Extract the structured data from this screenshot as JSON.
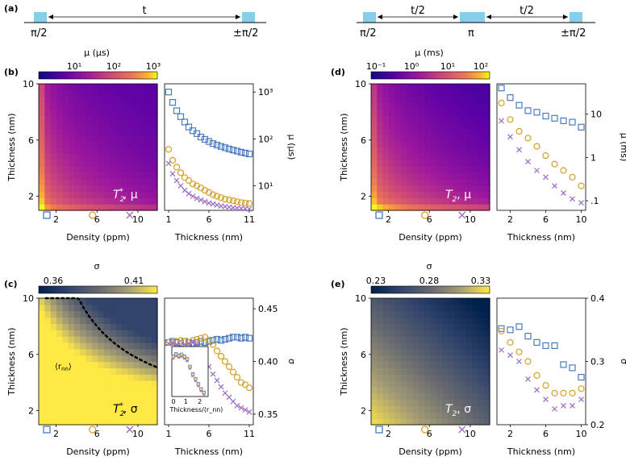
{
  "panel_labels": [
    "(a)",
    "(b)",
    "(c)",
    "(d)",
    "(e)"
  ],
  "pulse_a": {
    "start": "π/2",
    "end": "±π/2",
    "interval": "t"
  },
  "pulse_d": {
    "start": "π/2",
    "mid": "π",
    "end": "±π/2",
    "interval": "t/2"
  },
  "density_label": "Density (ppm)",
  "thickness_label": "Thickness (nm)",
  "colors": {
    "pulse": "#87ceeb",
    "blue": "#4a7bbf",
    "orange": "#d4a02a",
    "purple": "#9b6bc4",
    "dotted": "#000000"
  },
  "marker_legend": [
    "square",
    "circle",
    "x"
  ],
  "chart_data": [
    {
      "id": "b",
      "type": "heatmap",
      "xlabel": "Density (ppm)",
      "ylabel": "Thickness (nm)",
      "xticks": [
        "2",
        "6",
        "10"
      ],
      "yticks": [
        "2",
        "6",
        "10"
      ],
      "colorbar": {
        "label": "μ (μs)",
        "ticks": [
          "10¹",
          "10²",
          "10³"
        ],
        "scale": "log",
        "colormap": "plasma"
      },
      "annotation": "T2*, μ",
      "trend": "high at low density/low thickness, decreasing toward high density"
    },
    {
      "id": "b_side",
      "type": "scatter",
      "xlabel": "Thickness (nm)",
      "ylabel": "μ (μs)",
      "xticks": [
        "1",
        "6",
        "11"
      ],
      "yticks": [
        "10¹",
        "10²",
        "10³"
      ],
      "yscale": "log",
      "ylim": [
        3,
        1500
      ],
      "series": [
        {
          "marker": "square",
          "x": [
            1,
            1.5,
            2,
            2.5,
            3,
            3.5,
            4,
            4.5,
            5,
            5.5,
            6,
            6.5,
            7,
            7.5,
            8,
            8.5,
            9,
            9.5,
            10,
            10.5,
            11
          ],
          "values": [
            1000,
            600,
            400,
            300,
            230,
            180,
            150,
            130,
            110,
            98,
            88,
            80,
            74,
            69,
            65,
            61,
            58,
            55,
            52,
            50,
            48
          ]
        },
        {
          "marker": "circle",
          "x": [
            1,
            1.5,
            2,
            2.5,
            3,
            3.5,
            4,
            4.5,
            5,
            5.5,
            6,
            6.5,
            7,
            7.5,
            8,
            8.5,
            9,
            9.5,
            10,
            10.5,
            11
          ],
          "values": [
            60,
            35,
            25,
            19,
            15,
            13,
            11,
            10,
            9,
            8,
            7.2,
            6.5,
            6,
            5.6,
            5.2,
            5,
            4.8,
            4.6,
            4.4,
            4.3,
            4.2
          ]
        },
        {
          "marker": "x",
          "x": [
            1,
            1.5,
            2,
            2.5,
            3,
            3.5,
            4,
            4.5,
            5,
            5.5,
            6,
            6.5,
            7,
            7.5,
            8,
            8.5,
            9,
            9.5,
            10,
            10.5,
            11
          ],
          "values": [
            30,
            18,
            13,
            10,
            8,
            6.8,
            6,
            5.4,
            5,
            4.6,
            4.3,
            4.1,
            3.9,
            3.7,
            3.6,
            3.5,
            3.4,
            3.35,
            3.3,
            3.25,
            3.2
          ]
        }
      ]
    },
    {
      "id": "c",
      "type": "heatmap",
      "xlabel": "Density (ppm)",
      "ylabel": "Thickness (nm)",
      "xticks": [
        "2",
        "6",
        "10"
      ],
      "yticks": [
        "2",
        "6",
        "10"
      ],
      "colorbar": {
        "label": "σ",
        "ticks": [
          "0.36",
          "0.41"
        ],
        "colormap": "cividis"
      },
      "annotation": "T2*, σ",
      "curve_label": "⟨r_nn⟩"
    },
    {
      "id": "c_side",
      "type": "scatter",
      "xlabel": "Thickness (nm)",
      "ylabel": "σ",
      "xticks": [
        "1",
        "6",
        "11"
      ],
      "yticks": [
        "0.35",
        "0.40",
        "0.45"
      ],
      "ylim": [
        0.34,
        0.46
      ],
      "series": [
        {
          "marker": "square",
          "x": [
            1,
            1.5,
            2,
            2.5,
            3,
            3.5,
            4,
            4.5,
            5,
            5.5,
            6,
            6.5,
            7,
            7.5,
            8,
            8.5,
            9,
            9.5,
            10,
            10.5,
            11
          ],
          "values": [
            0.418,
            0.419,
            0.418,
            0.417,
            0.419,
            0.418,
            0.417,
            0.418,
            0.419,
            0.418,
            0.419,
            0.42,
            0.421,
            0.42,
            0.421,
            0.422,
            0.423,
            0.423,
            0.422,
            0.423,
            0.422
          ]
        },
        {
          "marker": "circle",
          "x": [
            1,
            1.5,
            2,
            2.5,
            3,
            3.5,
            4,
            4.5,
            5,
            5.5,
            6,
            6.5,
            7,
            7.5,
            8,
            8.5,
            9,
            9.5,
            10,
            10.5,
            11
          ],
          "values": [
            0.418,
            0.418,
            0.419,
            0.42,
            0.419,
            0.418,
            0.42,
            0.421,
            0.422,
            0.423,
            0.42,
            0.416,
            0.41,
            0.405,
            0.4,
            0.395,
            0.39,
            0.385,
            0.38,
            0.378,
            0.375
          ]
        },
        {
          "marker": "x",
          "x": [
            1,
            1.5,
            2,
            2.5,
            3,
            3.5,
            4,
            4.5,
            5,
            5.5,
            6,
            6.5,
            7,
            7.5,
            8,
            8.5,
            9,
            9.5,
            10,
            10.5,
            11
          ],
          "values": [
            0.417,
            0.418,
            0.416,
            0.415,
            0.416,
            0.417,
            0.418,
            0.416,
            0.41,
            0.402,
            0.395,
            0.388,
            0.382,
            0.376,
            0.37,
            0.366,
            0.362,
            0.358,
            0.356,
            0.354,
            0.352
          ]
        }
      ],
      "inset": {
        "xlabel": "Thickness/⟨r_nn⟩",
        "xticks": [
          "0",
          "1",
          "2"
        ]
      }
    },
    {
      "id": "d",
      "type": "heatmap",
      "xlabel": "Density (ppm)",
      "ylabel": "Thickness (nm)",
      "xticks": [
        "2",
        "6",
        "10"
      ],
      "yticks": [
        "2",
        "6",
        "10"
      ],
      "colorbar": {
        "label": "μ (ms)",
        "ticks": [
          "10⁻¹",
          "10⁰",
          "10¹",
          "10²"
        ],
        "scale": "log",
        "colormap": "plasma"
      },
      "annotation": "T2, μ"
    },
    {
      "id": "d_side",
      "type": "scatter",
      "xlabel": "Thickness (nm)",
      "ylabel": "μ (ms)",
      "xticks": [
        "2",
        "6",
        "10"
      ],
      "yticks": [
        ".1",
        "1",
        "10"
      ],
      "yscale": "log",
      "ylim": [
        0.06,
        50
      ],
      "series": [
        {
          "marker": "square",
          "x": [
            1,
            2,
            3,
            4,
            5,
            6,
            7,
            8,
            9,
            10
          ],
          "values": [
            40,
            24,
            16,
            12,
            11,
            9,
            8,
            7,
            6.5,
            5
          ]
        },
        {
          "marker": "circle",
          "x": [
            1,
            2,
            3,
            4,
            5,
            6,
            7,
            8,
            9,
            10
          ],
          "values": [
            18,
            7.5,
            4,
            2.8,
            1.8,
            1.1,
            0.7,
            0.5,
            0.35,
            0.22
          ]
        },
        {
          "marker": "x",
          "x": [
            1,
            2,
            3,
            4,
            5,
            6,
            7,
            8,
            9,
            10
          ],
          "values": [
            7,
            3,
            1.5,
            0.8,
            0.5,
            0.35,
            0.22,
            0.15,
            0.11,
            0.09
          ]
        }
      ]
    },
    {
      "id": "e",
      "type": "heatmap",
      "xlabel": "Density (ppm)",
      "ylabel": "Thickness (nm)",
      "xticks": [
        "2",
        "6",
        "10"
      ],
      "yticks": [
        "2",
        "6",
        "10"
      ],
      "colorbar": {
        "label": "σ",
        "ticks": [
          "0.23",
          "0.28",
          "0.33"
        ],
        "colormap": "cividis"
      },
      "annotation": "T2, σ"
    },
    {
      "id": "e_side",
      "type": "scatter",
      "xlabel": "Thickness (nm)",
      "ylabel": "σ",
      "xticks": [
        "2",
        "6",
        "10"
      ],
      "yticks": [
        "0.2",
        "0.3",
        "0.4"
      ],
      "ylim": [
        0.2,
        0.4
      ],
      "series": [
        {
          "marker": "square",
          "x": [
            1,
            2,
            3,
            4,
            5,
            6,
            7,
            8,
            9,
            10
          ],
          "values": [
            0.352,
            0.35,
            0.355,
            0.34,
            0.33,
            0.325,
            0.325,
            0.295,
            0.29,
            0.275
          ]
        },
        {
          "marker": "circle",
          "x": [
            1,
            2,
            3,
            4,
            5,
            6,
            7,
            8,
            9,
            10
          ],
          "values": [
            0.348,
            0.33,
            0.315,
            0.3,
            0.278,
            0.262,
            0.25,
            0.25,
            0.25,
            0.257
          ]
        },
        {
          "marker": "x",
          "x": [
            1,
            2,
            3,
            4,
            5,
            6,
            7,
            8,
            9,
            10
          ],
          "values": [
            0.318,
            0.31,
            0.3,
            0.272,
            0.255,
            0.24,
            0.225,
            0.23,
            0.23,
            0.24
          ]
        }
      ]
    }
  ]
}
